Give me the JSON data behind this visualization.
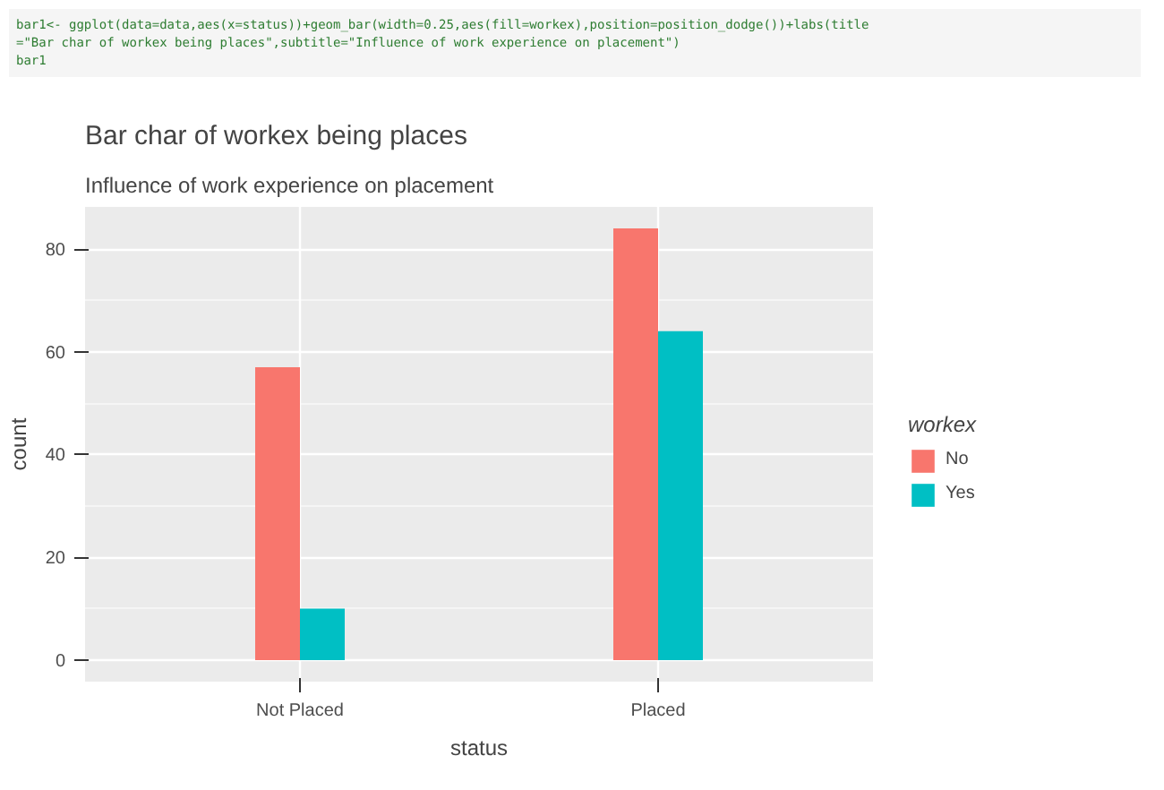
{
  "chart_data": {
    "type": "bar",
    "title": "Bar char of workex being places",
    "subtitle": "Influence of work experience on placement",
    "xlabel": "status",
    "ylabel": "count",
    "legend_title": "workex",
    "categories": [
      "Not Placed",
      "Placed"
    ],
    "series": [
      {
        "name": "No",
        "color": "#f8766d",
        "values": [
          57,
          84
        ]
      },
      {
        "name": "Yes",
        "color": "#00bfc4",
        "values": [
          10,
          64
        ]
      }
    ],
    "ylim": [
      -4.2,
      88.2
    ],
    "yticks": [
      0,
      20,
      40,
      60,
      80
    ],
    "grid": true,
    "legend": "right",
    "annotations": [
      "bar1<- ggplot(data=data,aes(x=status))+geom_bar(width=0.25,aes(fill=workex),position=position_dodge())+labs(title",
      "=\"Bar char of workex being places\",subtitle=\"Influence of work experience on placement\")",
      "bar1"
    ]
  }
}
